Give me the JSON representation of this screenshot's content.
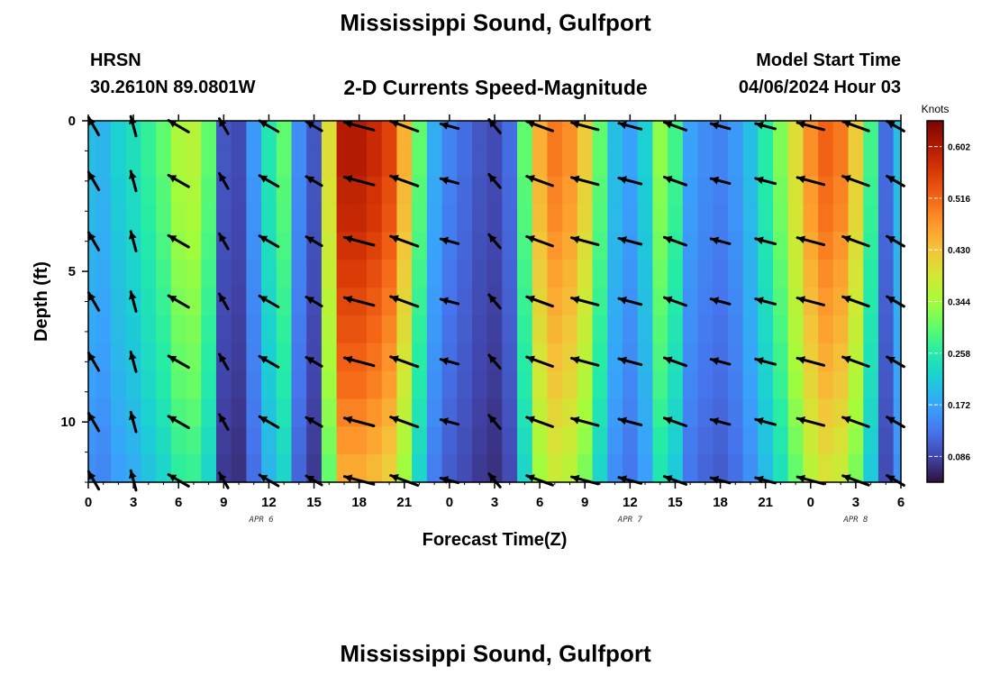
{
  "header": {
    "title": "Mississippi Sound, Gulfport",
    "station": "HRSN",
    "coords": "30.2610N  89.0801W",
    "subtitle": "2-D Currents Speed-Magnitude",
    "model_label": "Model Start Time",
    "model_time": "04/06/2024 Hour 03"
  },
  "footer": {
    "title": "Mississippi Sound, Gulfport"
  },
  "chart_data": {
    "type": "heatmap",
    "title": "2-D Currents Speed-Magnitude",
    "xlabel": "Forecast Time(Z)",
    "ylabel": "Depth (ft)",
    "x_ticks": [
      "0",
      "3",
      "6",
      "9",
      "12",
      "15",
      "18",
      "21",
      "0",
      "3",
      "6",
      "9",
      "12",
      "15",
      "18",
      "21",
      "0",
      "3",
      "6"
    ],
    "x_tick_hours": [
      0,
      3,
      6,
      9,
      12,
      15,
      18,
      21,
      24,
      27,
      30,
      33,
      36,
      39,
      42,
      45,
      48,
      51,
      54
    ],
    "xlim": [
      0,
      54
    ],
    "date_labels": [
      {
        "label": "APR 6",
        "hour": 11.5
      },
      {
        "label": "APR 7",
        "hour": 36
      },
      {
        "label": "APR 8",
        "hour": 51
      }
    ],
    "y_ticks": [
      "0",
      "5",
      "10"
    ],
    "y_tick_values": [
      0,
      5,
      10
    ],
    "ylim": [
      12,
      0
    ],
    "colorbar": {
      "label": "Knots",
      "range": [
        0.043,
        0.645
      ],
      "ticks": [
        "0.086",
        "0.172",
        "0.258",
        "0.344",
        "0.430",
        "0.516",
        "0.602"
      ],
      "tick_values": [
        0.086,
        0.172,
        0.258,
        0.344,
        0.43,
        0.516,
        0.602
      ]
    },
    "surface_speed_by_hour": [
      0.2,
      0.19,
      0.22,
      0.24,
      0.27,
      0.3,
      0.35,
      0.36,
      0.3,
      0.1,
      0.09,
      0.16,
      0.25,
      0.3,
      0.15,
      0.1,
      0.4,
      0.6,
      0.6,
      0.58,
      0.55,
      0.45,
      0.3,
      0.18,
      0.14,
      0.12,
      0.1,
      0.09,
      0.12,
      0.3,
      0.45,
      0.5,
      0.48,
      0.42,
      0.3,
      0.2,
      0.17,
      0.22,
      0.33,
      0.28,
      0.17,
      0.15,
      0.14,
      0.16,
      0.2,
      0.26,
      0.32,
      0.4,
      0.48,
      0.52,
      0.5,
      0.42,
      0.28,
      0.12,
      0.2
    ],
    "depth_factor": [
      1.0,
      1.0,
      0.98,
      0.97,
      0.95,
      0.93,
      0.91,
      0.89,
      0.87,
      0.85,
      0.82,
      0.79,
      0.76
    ],
    "vector_hours": [
      0,
      3,
      6,
      9,
      12,
      15,
      18,
      21,
      24,
      27,
      30,
      33,
      36,
      39,
      42,
      45,
      48,
      51,
      54
    ],
    "vector_depths": [
      0,
      2,
      4,
      6,
      8,
      10,
      12
    ],
    "vector_direction_deg": [
      240,
      255,
      210,
      240,
      210,
      210,
      195,
      200,
      195,
      230,
      200,
      195,
      195,
      200,
      195,
      195,
      195,
      200,
      210
    ],
    "vector_speed_knots": [
      0.2,
      0.2,
      0.3,
      0.1,
      0.25,
      0.12,
      0.55,
      0.5,
      0.13,
      0.1,
      0.45,
      0.45,
      0.3,
      0.3,
      0.17,
      0.2,
      0.45,
      0.45,
      0.18
    ]
  }
}
